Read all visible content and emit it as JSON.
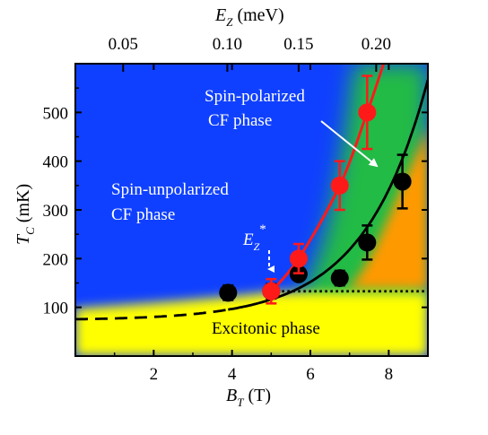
{
  "chart_data": {
    "type": "scatter",
    "xlabel": {
      "main": "B",
      "sub": "T",
      "unit": " (T)"
    },
    "ylabel": {
      "main": "T",
      "sub": "C",
      "unit": " (mK)"
    },
    "top_label": {
      "main": "E",
      "sub": "Z",
      "unit": " (meV)"
    },
    "xlim": [
      0,
      9
    ],
    "ylim": [
      0,
      600
    ],
    "x_ticks": [
      2,
      4,
      6,
      8
    ],
    "y_ticks": [
      100,
      200,
      300,
      400,
      500
    ],
    "top_ticks": [
      {
        "value": "0.05",
        "b": 1.22
      },
      {
        "value": "0.10",
        "b": 3.88
      },
      {
        "value": "0.15",
        "b": 5.7
      },
      {
        "value": "0.20",
        "b": 7.68
      }
    ],
    "series": [
      {
        "color": "#ff1a1a",
        "marker": "circle",
        "points": [
          {
            "x": 5.0,
            "y": 133,
            "err": 25
          },
          {
            "x": 5.7,
            "y": 200,
            "err": 30
          },
          {
            "x": 6.75,
            "y": 350,
            "err": 50
          },
          {
            "x": 7.45,
            "y": 500,
            "err": 75
          }
        ]
      },
      {
        "color": "#000000",
        "marker": "circle",
        "points": [
          {
            "x": 3.9,
            "y": 130,
            "err": 15
          },
          {
            "x": 5.0,
            "y": 133,
            "err": 15
          },
          {
            "x": 5.7,
            "y": 168,
            "err": 12
          },
          {
            "x": 6.75,
            "y": 160,
            "err": 15
          },
          {
            "x": 7.45,
            "y": 233,
            "err": 35
          },
          {
            "x": 8.35,
            "y": 358,
            "err": 55
          }
        ]
      }
    ],
    "fit_lines": {
      "black_curve": "T = 73.57 + 2.0 * exp(0.612 * B)",
      "red_curve": "steep rise from 5.0 T to about 7.9 T",
      "dotted_level": 133
    },
    "regions": [
      {
        "name": "Spin-unpolarized CF phase",
        "color": "#1040ff"
      },
      {
        "name": "Spin-polarized CF phase",
        "color": "#22bb44"
      },
      {
        "name": "Excitonic phase",
        "color": "#ffff00"
      },
      {
        "name": "",
        "color": "#ff9900"
      }
    ],
    "annotations": {
      "spin_polarized": [
        "Spin-polarized",
        "CF phase"
      ],
      "spin_unpolarized": [
        "Spin-unpolarized",
        "CF phase"
      ],
      "excitonic": "Excitonic phase",
      "ez_star": {
        "main": "E",
        "sub": "Z",
        "sup": "*"
      }
    },
    "grid": false,
    "legend": "none"
  }
}
